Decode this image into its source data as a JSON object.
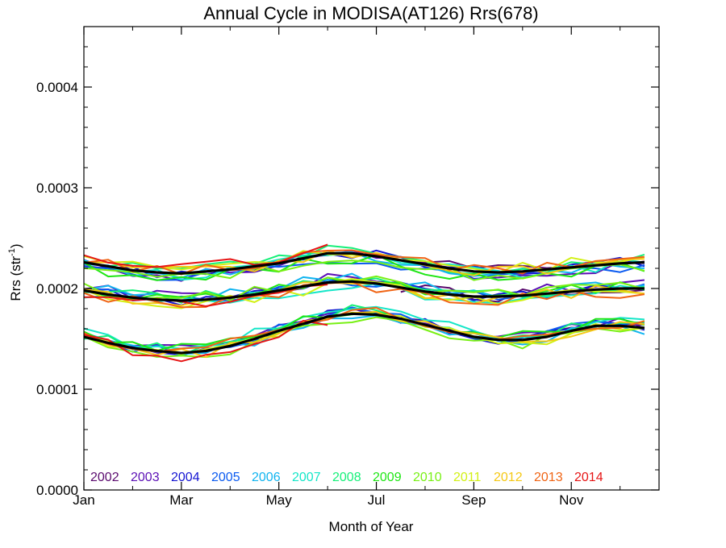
{
  "chart_data": {
    "type": "line",
    "title": "Annual Cycle in MODISA(AT126) Rrs(678)",
    "xlabel": "Month of Year",
    "ylabel_main": "Rrs (str",
    "ylabel_sup": "-1",
    "ylabel_close": ")",
    "xlim": [
      1,
      12.8
    ],
    "ylim": [
      0.0,
      0.00046
    ],
    "x_ticks": [
      {
        "value": 1,
        "label": "Jan"
      },
      {
        "value": 3,
        "label": "Mar"
      },
      {
        "value": 5,
        "label": "May"
      },
      {
        "value": 7,
        "label": "Jul"
      },
      {
        "value": 9,
        "label": "Sep"
      },
      {
        "value": 11,
        "label": "Nov"
      }
    ],
    "y_ticks": [
      {
        "value": 0.0,
        "label": "0.0000"
      },
      {
        "value": 0.0001,
        "label": "0.0001"
      },
      {
        "value": 0.0002,
        "label": "0.0002"
      },
      {
        "value": 0.0003,
        "label": "0.0003"
      },
      {
        "value": 0.0004,
        "label": "0.0004"
      }
    ],
    "grid": false,
    "legend_position": "bottom-left inside plot",
    "x": [
      1.0,
      1.5,
      2.0,
      2.5,
      3.0,
      3.5,
      4.0,
      4.5,
      5.0,
      5.5,
      6.0,
      6.5,
      7.0,
      7.5,
      8.0,
      8.5,
      9.0,
      9.5,
      10.0,
      10.5,
      11.0,
      11.5,
      12.0,
      12.5
    ],
    "band_centers": {
      "upper": [
        0.000226,
        0.000222,
        0.000218,
        0.000216,
        0.000215,
        0.000217,
        0.000219,
        0.000222,
        0.000225,
        0.00023,
        0.000235,
        0.000235,
        0.000232,
        0.000228,
        0.000224,
        0.00022,
        0.000217,
        0.000216,
        0.000217,
        0.000219,
        0.000221,
        0.000223,
        0.000225,
        0.000226
      ],
      "middle": [
        0.000198,
        0.000194,
        0.000191,
        0.000189,
        0.000188,
        0.000189,
        0.000191,
        0.000194,
        0.000198,
        0.000202,
        0.000206,
        0.000207,
        0.000205,
        0.000201,
        0.000197,
        0.000194,
        0.000192,
        0.000192,
        0.000193,
        0.000195,
        0.000197,
        0.000199,
        0.0002,
        0.0002
      ],
      "lower": [
        0.000152,
        0.000146,
        0.000141,
        0.000138,
        0.000136,
        0.000138,
        0.000143,
        0.00015,
        0.000158,
        0.000165,
        0.000172,
        0.000175,
        0.000174,
        0.00017,
        0.000164,
        0.000158,
        0.000152,
        0.000149,
        0.000149,
        0.000152,
        0.000158,
        0.000163,
        0.000163,
        0.000161
      ]
    },
    "series": [
      {
        "name": "2002",
        "color": "#5a0a6e"
      },
      {
        "name": "2003",
        "color": "#5b0fb5"
      },
      {
        "name": "2004",
        "color": "#1414d2"
      },
      {
        "name": "2005",
        "color": "#0a5af0"
      },
      {
        "name": "2006",
        "color": "#10b4f0"
      },
      {
        "name": "2007",
        "color": "#14e6c8"
      },
      {
        "name": "2008",
        "color": "#14f078"
      },
      {
        "name": "2009",
        "color": "#1ee614"
      },
      {
        "name": "2010",
        "color": "#78f014"
      },
      {
        "name": "2011",
        "color": "#d2f014"
      },
      {
        "name": "2012",
        "color": "#f5c814"
      },
      {
        "name": "2013",
        "color": "#f06414"
      },
      {
        "name": "2014",
        "color": "#e61414"
      }
    ],
    "mean_color": "#000000"
  }
}
